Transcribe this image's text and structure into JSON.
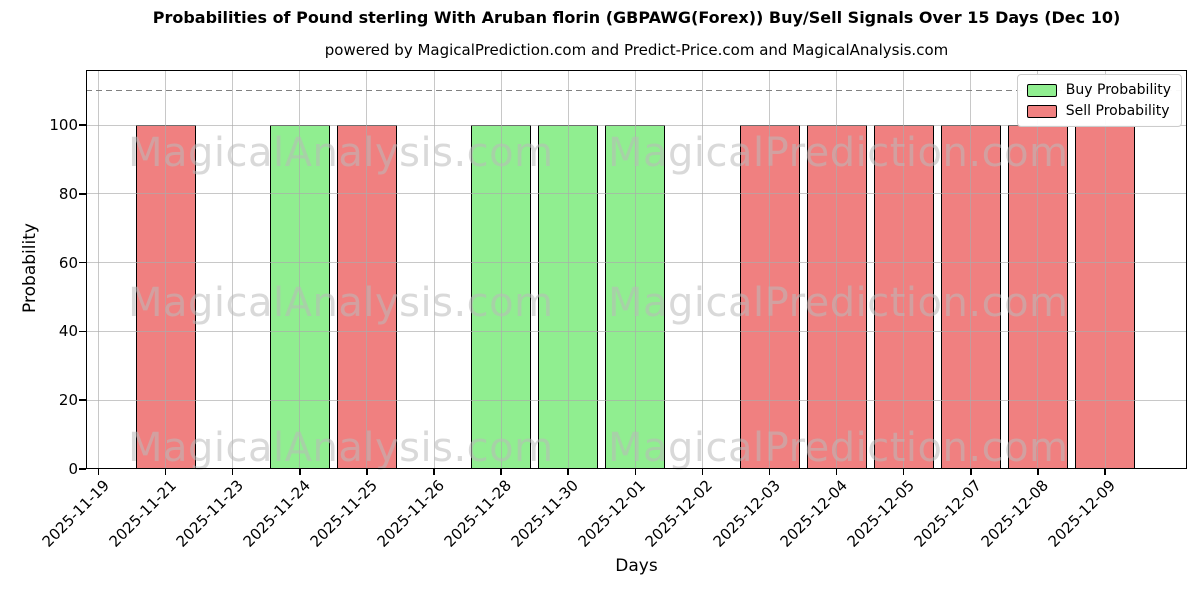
{
  "title": "Probabilities of Pound sterling With Aruban florin (GBPAWG(Forex)) Buy/Sell Signals Over 15 Days (Dec 10)",
  "subtitle": "powered by MagicalPrediction.com and Predict-Price.com and MagicalAnalysis.com",
  "legend": {
    "items": [
      {
        "label": "Buy Probability",
        "color": "#90EE90"
      },
      {
        "label": "Sell Probability",
        "color": "#F08080"
      }
    ]
  },
  "axes": {
    "x_label": "Days",
    "y_label": "Probability",
    "y_ticks": [
      0,
      20,
      40,
      60,
      80,
      100
    ],
    "y_max": 116,
    "dashed_line_y": 110
  },
  "colors": {
    "buy": "#90EE90",
    "sell": "#F08080",
    "bar_edge": "#000000",
    "grid": "#aaaaaa",
    "dashed_line": "#808080",
    "watermark": "#bcbcbc"
  },
  "watermarks": {
    "left_text": "MagicalAnalysis.com",
    "right_text": "MagicalPrediction.com"
  },
  "chart_data": {
    "type": "bar",
    "title": "Probabilities of Pound sterling With Aruban florin (GBPAWG(Forex)) Buy/Sell Signals Over 15 Days (Dec 10)",
    "xlabel": "Days",
    "ylabel": "Probability",
    "ylim": [
      0,
      116
    ],
    "grid": true,
    "legend_position": "upper right",
    "dashed_threshold_y": 110,
    "categories": [
      "2025-11-19",
      "2025-11-21",
      "2025-11-23",
      "2025-11-24",
      "2025-11-25",
      "2025-11-26",
      "2025-11-28",
      "2025-11-30",
      "2025-12-01",
      "2025-12-02",
      "2025-12-03",
      "2025-12-04",
      "2025-12-05",
      "2025-12-07",
      "2025-12-08",
      "2025-12-09"
    ],
    "series": [
      {
        "name": "Buy Probability",
        "color": "#90EE90",
        "values": [
          0,
          0,
          0,
          100,
          0,
          0,
          100,
          100,
          100,
          0,
          0,
          0,
          0,
          0,
          0,
          0
        ]
      },
      {
        "name": "Sell Probability",
        "color": "#F08080",
        "values": [
          0,
          100,
          0,
          0,
          100,
          0,
          0,
          0,
          0,
          0,
          100,
          100,
          100,
          100,
          100,
          100
        ]
      }
    ]
  }
}
